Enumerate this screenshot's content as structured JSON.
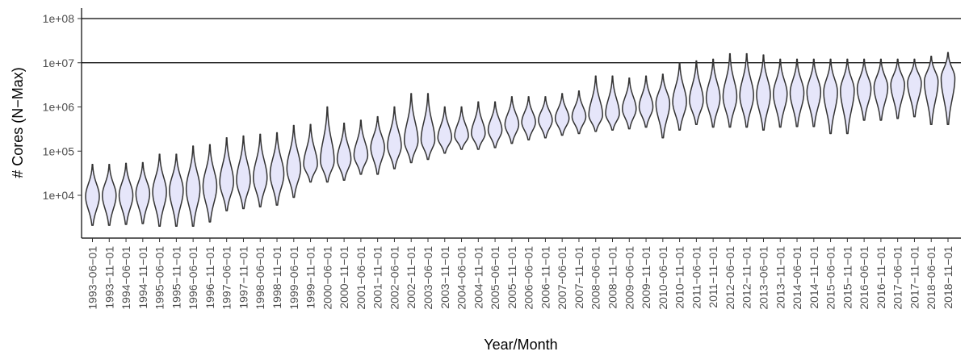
{
  "chart_data": {
    "type": "violin",
    "title": "",
    "xlabel": "Year/Month",
    "ylabel": "# Cores (N−Max)",
    "y_scale": "log10",
    "ylim": [
      1000,
      100000000
    ],
    "y_ticks": [
      {
        "value": 10000,
        "label": "1e+04"
      },
      {
        "value": 100000,
        "label": "1e+05"
      },
      {
        "value": 1000000,
        "label": "1e+06"
      },
      {
        "value": 10000000,
        "label": "1e+07"
      },
      {
        "value": 100000000,
        "label": "1e+08"
      }
    ],
    "reference_lines": [
      10000000,
      100000000
    ],
    "grid": false,
    "fill_color": "#e6e6fa",
    "stroke_color": "#333333",
    "categories": [
      "1993−06−01",
      "1993−11−01",
      "1994−06−01",
      "1994−11−01",
      "1995−06−01",
      "1995−11−01",
      "1996−06−01",
      "1996−11−01",
      "1997−06−01",
      "1997−11−01",
      "1998−06−01",
      "1998−11−01",
      "1999−06−01",
      "1999−11−01",
      "2000−06−01",
      "2000−11−01",
      "2001−06−01",
      "2001−11−01",
      "2002−06−01",
      "2002−11−01",
      "2003−06−01",
      "2003−11−01",
      "2004−06−01",
      "2004−11−01",
      "2005−06−01",
      "2005−11−01",
      "2006−06−01",
      "2006−11−01",
      "2007−06−01",
      "2007−11−01",
      "2008−06−01",
      "2008−11−01",
      "2009−06−01",
      "2009−11−01",
      "2010−06−01",
      "2010−11−01",
      "2011−06−01",
      "2011−11−01",
      "2012−06−01",
      "2012−11−01",
      "2013−06−01",
      "2013−11−01",
      "2014−06−01",
      "2014−11−01",
      "2015−06−01",
      "2015−11−01",
      "2016−06−01",
      "2016−11−01",
      "2017−06−01",
      "2017−11−01",
      "2018−06−01",
      "2018−11−01"
    ],
    "series": [
      {
        "values": [
          {
            "min": 2100,
            "median": 9500,
            "max": 50000
          },
          {
            "min": 2100,
            "median": 10000,
            "max": 50000
          },
          {
            "min": 2200,
            "median": 10000,
            "max": 53000
          },
          {
            "min": 2300,
            "median": 11000,
            "max": 55000
          },
          {
            "min": 2000,
            "median": 12000,
            "max": 85000
          },
          {
            "min": 2000,
            "median": 13000,
            "max": 85000
          },
          {
            "min": 2000,
            "median": 14000,
            "max": 130000
          },
          {
            "min": 2500,
            "median": 16000,
            "max": 140000
          },
          {
            "min": 4500,
            "median": 20000,
            "max": 200000
          },
          {
            "min": 5000,
            "median": 22000,
            "max": 220000
          },
          {
            "min": 5500,
            "median": 25000,
            "max": 240000
          },
          {
            "min": 6000,
            "median": 30000,
            "max": 260000
          },
          {
            "min": 9000,
            "median": 40000,
            "max": 380000
          },
          {
            "min": 20000,
            "median": 50000,
            "max": 400000
          },
          {
            "min": 20000,
            "median": 60000,
            "max": 1000000
          },
          {
            "min": 22000,
            "median": 65000,
            "max": 430000
          },
          {
            "min": 30000,
            "median": 80000,
            "max": 500000
          },
          {
            "min": 30000,
            "median": 120000,
            "max": 600000
          },
          {
            "min": 40000,
            "median": 130000,
            "max": 1000000
          },
          {
            "min": 55000,
            "median": 170000,
            "max": 2000000
          },
          {
            "min": 65000,
            "median": 180000,
            "max": 2000000
          },
          {
            "min": 90000,
            "median": 200000,
            "max": 1000000
          },
          {
            "min": 110000,
            "median": 220000,
            "max": 1000000
          },
          {
            "min": 110000,
            "median": 250000,
            "max": 1300000
          },
          {
            "min": 120000,
            "median": 300000,
            "max": 1300000
          },
          {
            "min": 150000,
            "median": 400000,
            "max": 1700000
          },
          {
            "min": 180000,
            "median": 450000,
            "max": 1700000
          },
          {
            "min": 200000,
            "median": 500000,
            "max": 1700000
          },
          {
            "min": 230000,
            "median": 550000,
            "max": 2000000
          },
          {
            "min": 250000,
            "median": 600000,
            "max": 2300000
          },
          {
            "min": 280000,
            "median": 650000,
            "max": 5000000
          },
          {
            "min": 300000,
            "median": 700000,
            "max": 5000000
          },
          {
            "min": 320000,
            "median": 900000,
            "max": 4500000
          },
          {
            "min": 350000,
            "median": 1000000,
            "max": 5000000
          },
          {
            "min": 200000,
            "median": 1200000,
            "max": 5500000
          },
          {
            "min": 300000,
            "median": 1300000,
            "max": 10000000
          },
          {
            "min": 400000,
            "median": 1400000,
            "max": 11000000
          },
          {
            "min": 350000,
            "median": 1600000,
            "max": 12000000
          },
          {
            "min": 350000,
            "median": 1700000,
            "max": 16000000
          },
          {
            "min": 350000,
            "median": 1800000,
            "max": 16000000
          },
          {
            "min": 300000,
            "median": 1900000,
            "max": 15000000
          },
          {
            "min": 350000,
            "median": 2000000,
            "max": 12000000
          },
          {
            "min": 360000,
            "median": 2100000,
            "max": 12000000
          },
          {
            "min": 360000,
            "median": 2200000,
            "max": 12000000
          },
          {
            "min": 250000,
            "median": 2200000,
            "max": 12000000
          },
          {
            "min": 250000,
            "median": 2400000,
            "max": 12000000
          },
          {
            "min": 500000,
            "median": 2600000,
            "max": 12000000
          },
          {
            "min": 500000,
            "median": 2800000,
            "max": 12000000
          },
          {
            "min": 550000,
            "median": 3200000,
            "max": 12000000
          },
          {
            "min": 600000,
            "median": 3500000,
            "max": 12000000
          },
          {
            "min": 400000,
            "median": 3800000,
            "max": 14000000
          },
          {
            "min": 400000,
            "median": 4500000,
            "max": 17000000
          }
        ]
      }
    ]
  }
}
